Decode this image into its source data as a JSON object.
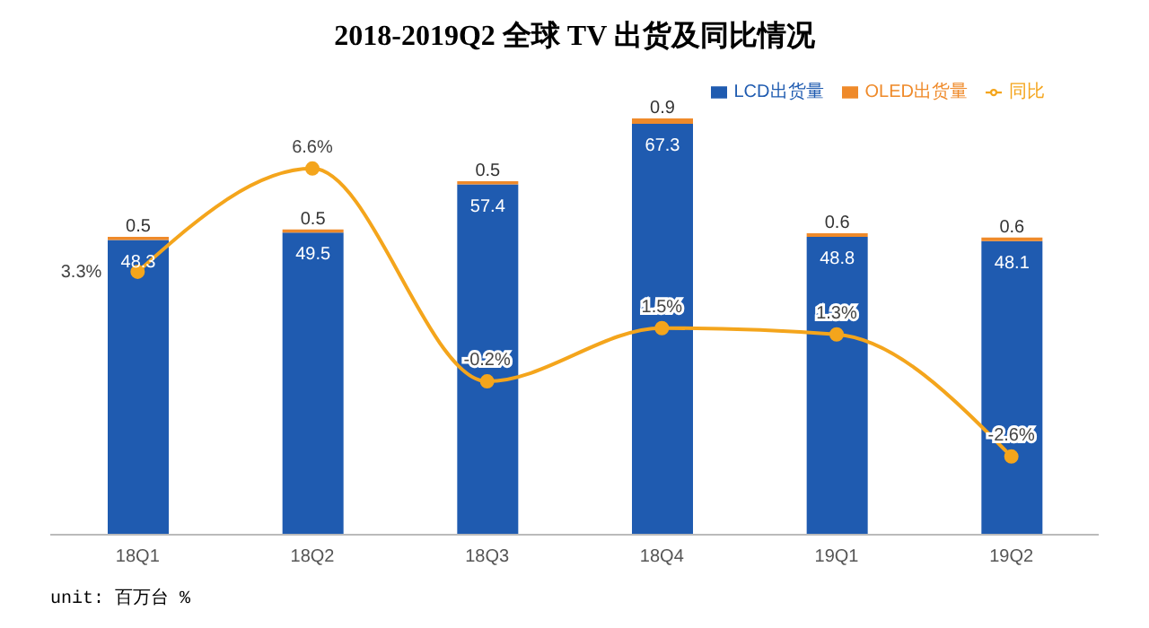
{
  "chart_data": {
    "type": "bar",
    "title": "2018-2019Q2 全球 TV 出货及同比情况",
    "categories": [
      "18Q1",
      "18Q2",
      "18Q3",
      "18Q4",
      "19Q1",
      "19Q2"
    ],
    "stacked": true,
    "data_labels": true,
    "legend": "top right",
    "marker": "circle",
    "line_style": "solid",
    "series": [
      {
        "name": "LCD出货量",
        "color": "#1f5bb0",
        "values": [
          48.3,
          49.5,
          57.4,
          67.3,
          48.8,
          48.1
        ]
      },
      {
        "name": "OLED出货量",
        "color": "#ef8a2a",
        "values": [
          0.5,
          0.5,
          0.5,
          0.9,
          0.6,
          0.6
        ]
      },
      {
        "name": "同比",
        "type": "line",
        "axis": "y2",
        "color": "#f4a51c",
        "values": [
          3.3,
          6.6,
          -0.2,
          1.5,
          1.3,
          -2.6
        ],
        "value_labels": [
          "3.3%",
          "6.6%",
          "-0.2%",
          "1.5%",
          "1.3%",
          "-2.6%"
        ]
      }
    ],
    "annotations": [
      "unit: 百万台 %"
    ]
  }
}
